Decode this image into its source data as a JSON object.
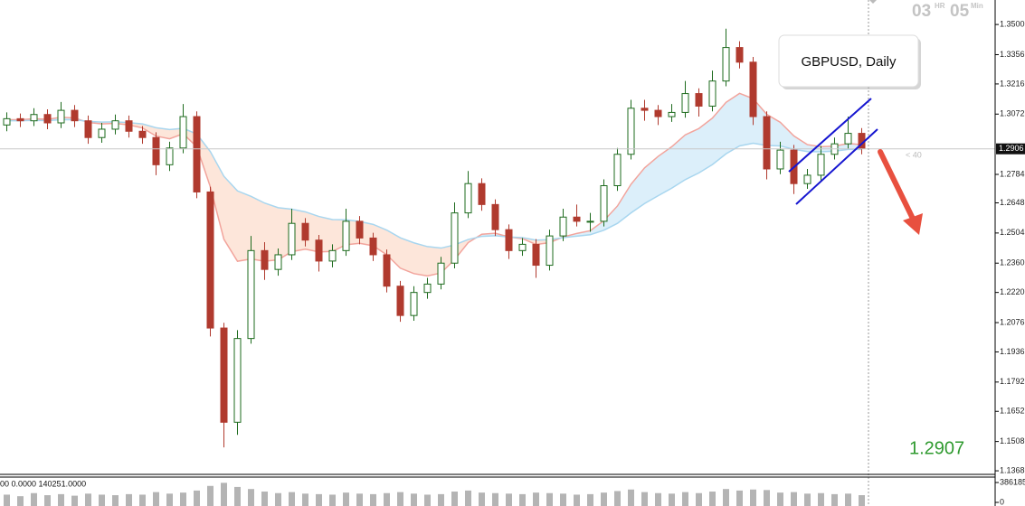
{
  "chart_data": [
    {
      "type": "candlestick",
      "title": "GBPUSD, Daily",
      "open": [
        1.302,
        1.305,
        1.304,
        1.307,
        1.303,
        1.309,
        1.304,
        1.296,
        1.3,
        1.304,
        1.299,
        1.296,
        1.283,
        1.291,
        1.306,
        1.27,
        1.205,
        1.16,
        1.2,
        1.242,
        1.233,
        1.24,
        1.255,
        1.247,
        1.237,
        1.242,
        1.256,
        1.248,
        1.24,
        1.225,
        1.211,
        1.222,
        1.226,
        1.236,
        1.26,
        1.274,
        1.264,
        1.252,
        1.242,
        1.245,
        1.235,
        1.249,
        1.258,
        1.256,
        1.256,
        1.273,
        1.288,
        1.31,
        1.309,
        1.306,
        1.308,
        1.317,
        1.311,
        1.323,
        1.339,
        1.332,
        1.306,
        1.281,
        1.29,
        1.274,
        1.278,
        1.288,
        1.293,
        1.298
      ],
      "high": [
        1.308,
        1.3075,
        1.31,
        1.3095,
        1.313,
        1.3115,
        1.3065,
        1.303,
        1.307,
        1.3065,
        1.3015,
        1.2985,
        1.294,
        1.312,
        1.3085,
        1.2725,
        1.2075,
        1.204,
        1.249,
        1.246,
        1.243,
        1.262,
        1.2575,
        1.2495,
        1.245,
        1.262,
        1.2585,
        1.2505,
        1.2425,
        1.2275,
        1.225,
        1.229,
        1.239,
        1.265,
        1.28,
        1.2765,
        1.2665,
        1.2545,
        1.248,
        1.2475,
        1.252,
        1.262,
        1.264,
        1.26,
        1.276,
        1.291,
        1.314,
        1.314,
        1.3115,
        1.312,
        1.323,
        1.3195,
        1.328,
        1.348,
        1.342,
        1.3345,
        1.3085,
        1.294,
        1.2925,
        1.281,
        1.292,
        1.296,
        1.306,
        1.3005
      ],
      "low": [
        1.299,
        1.301,
        1.3015,
        1.3,
        1.3005,
        1.301,
        1.293,
        1.2935,
        1.2975,
        1.296,
        1.293,
        1.278,
        1.28,
        1.2885,
        1.267,
        1.201,
        1.148,
        1.154,
        1.1975,
        1.228,
        1.23,
        1.2375,
        1.244,
        1.232,
        1.234,
        1.2395,
        1.245,
        1.237,
        1.222,
        1.208,
        1.2085,
        1.219,
        1.2235,
        1.2335,
        1.2575,
        1.261,
        1.249,
        1.238,
        1.2395,
        1.229,
        1.2325,
        1.2465,
        1.2535,
        1.251,
        1.2535,
        1.2705,
        1.2855,
        1.304,
        1.302,
        1.3035,
        1.3055,
        1.306,
        1.3085,
        1.3205,
        1.329,
        1.302,
        1.276,
        1.2785,
        1.269,
        1.2715,
        1.2755,
        1.2855,
        1.2905,
        1.288
      ],
      "close": [
        1.305,
        1.304,
        1.307,
        1.303,
        1.309,
        1.304,
        1.296,
        1.3,
        1.304,
        1.299,
        1.296,
        1.283,
        1.291,
        1.306,
        1.27,
        1.205,
        1.16,
        1.2,
        1.242,
        1.233,
        1.24,
        1.255,
        1.247,
        1.237,
        1.242,
        1.256,
        1.248,
        1.24,
        1.225,
        1.211,
        1.222,
        1.226,
        1.236,
        1.26,
        1.274,
        1.264,
        1.252,
        1.242,
        1.245,
        1.235,
        1.249,
        1.258,
        1.256,
        1.256,
        1.273,
        1.288,
        1.31,
        1.309,
        1.306,
        1.308,
        1.317,
        1.311,
        1.323,
        1.339,
        1.332,
        1.306,
        1.281,
        1.29,
        1.274,
        1.278,
        1.288,
        1.293,
        1.298,
        1.2907
      ],
      "up_color": "#1e6b1e",
      "down_color": "#b03a2e",
      "indicators": [
        {
          "color": "#f2a49c",
          "values": [
            1.3045,
            1.3045,
            1.305,
            1.3047,
            1.3057,
            1.3053,
            1.3032,
            1.3025,
            1.3028,
            1.302,
            1.3006,
            1.2967,
            1.2954,
            1.2978,
            1.2916,
            1.2724,
            1.2474,
            1.2369,
            1.238,
            1.2369,
            1.2376,
            1.2415,
            1.2427,
            1.2414,
            1.2416,
            1.2448,
            1.2455,
            1.2443,
            1.24,
            1.2336,
            1.231,
            1.2299,
            1.2313,
            1.2377,
            1.2458,
            1.2498,
            1.2503,
            1.2485,
            1.2477,
            1.2449,
            1.2458,
            1.2485,
            1.2502,
            1.2515,
            1.2563,
            1.2633,
            1.2737,
            1.2815,
            1.287,
            1.2916,
            1.2973,
            1.3003,
            1.3053,
            1.3128,
            1.3171,
            1.3146,
            1.3071,
            1.3033,
            1.2968,
            1.2926,
            1.2916,
            1.2919,
            1.2932,
            1.2926
          ]
        },
        {
          "color": "#a8d6ef",
          "values": [
            1.304,
            1.304,
            1.3042,
            1.3041,
            1.3045,
            1.3045,
            1.3037,
            1.3034,
            1.3035,
            1.3031,
            1.3025,
            1.3007,
            1.2998,
            1.3004,
            1.2977,
            1.2893,
            1.2775,
            1.2705,
            1.2679,
            1.2647,
            1.2625,
            1.2618,
            1.2605,
            1.2583,
            1.2568,
            1.2567,
            1.2559,
            1.2545,
            1.2518,
            1.2481,
            1.2457,
            1.2439,
            1.2432,
            1.2447,
            1.2473,
            1.2488,
            1.2491,
            1.2485,
            1.2482,
            1.247,
            1.2472,
            1.2482,
            1.2489,
            1.2496,
            1.2517,
            1.255,
            1.26,
            1.2645,
            1.2682,
            1.2718,
            1.2759,
            1.2791,
            1.2831,
            1.2882,
            1.292,
            1.2933,
            1.2922,
            1.292,
            1.2904,
            1.2893,
            1.2892,
            1.2895,
            1.2903,
            1.2903
          ]
        }
      ],
      "cloud_up_color": "#dcefFA",
      "cloud_down_color": "#fde6da",
      "ylim": [
        1.1351,
        1.3617
      ],
      "yticks": [
        {
          "value": 1.35,
          "label": "1.3500"
        },
        {
          "value": 1.3356,
          "label": "1.3356"
        },
        {
          "value": 1.3216,
          "label": "1.3216"
        },
        {
          "value": 1.3072,
          "label": "1.3072"
        },
        {
          "value": 1.2784,
          "label": "1.2784"
        },
        {
          "value": 1.2648,
          "label": "1.2648"
        },
        {
          "value": 1.2504,
          "label": "1.2504"
        },
        {
          "value": 1.236,
          "label": "1.2360"
        },
        {
          "value": 1.222,
          "label": "1.2220"
        },
        {
          "value": 1.2076,
          "label": "1.2076"
        },
        {
          "value": 1.1936,
          "label": "1.1936"
        },
        {
          "value": 1.1792,
          "label": "1.1792"
        },
        {
          "value": 1.1652,
          "label": "1.1652"
        },
        {
          "value": 1.1508,
          "label": "1.1508"
        },
        {
          "value": 1.1368,
          "label": "1.1368"
        }
      ],
      "current_price": 1.2906,
      "spread": "< 40",
      "bid": "1.2907",
      "countdown": {
        "hours": "03",
        "hours_unit": "HR",
        "minutes": "05",
        "minutes_unit": "Min"
      }
    },
    {
      "type": "bar",
      "info": "00 0.0000 140251.0000",
      "color": "#b4b4b4",
      "values": [
        150000,
        120000,
        180000,
        140000,
        160000,
        130000,
        170000,
        150000,
        140000,
        160000,
        150000,
        200000,
        170000,
        190000,
        230000,
        320000,
        380000,
        300000,
        260000,
        210000,
        180000,
        200000,
        170000,
        160000,
        150000,
        190000,
        170000,
        160000,
        180000,
        200000,
        170000,
        150000,
        160000,
        210000,
        230000,
        190000,
        180000,
        170000,
        160000,
        190000,
        180000,
        170000,
        150000,
        160000,
        190000,
        220000,
        250000,
        200000,
        180000,
        170000,
        200000,
        180000,
        210000,
        260000,
        230000,
        250000,
        240000,
        190000,
        200000,
        170000,
        180000,
        160000,
        170000,
        140251
      ],
      "ylim": [
        0,
        386185
      ],
      "yticks": [
        386185,
        0
      ]
    }
  ]
}
